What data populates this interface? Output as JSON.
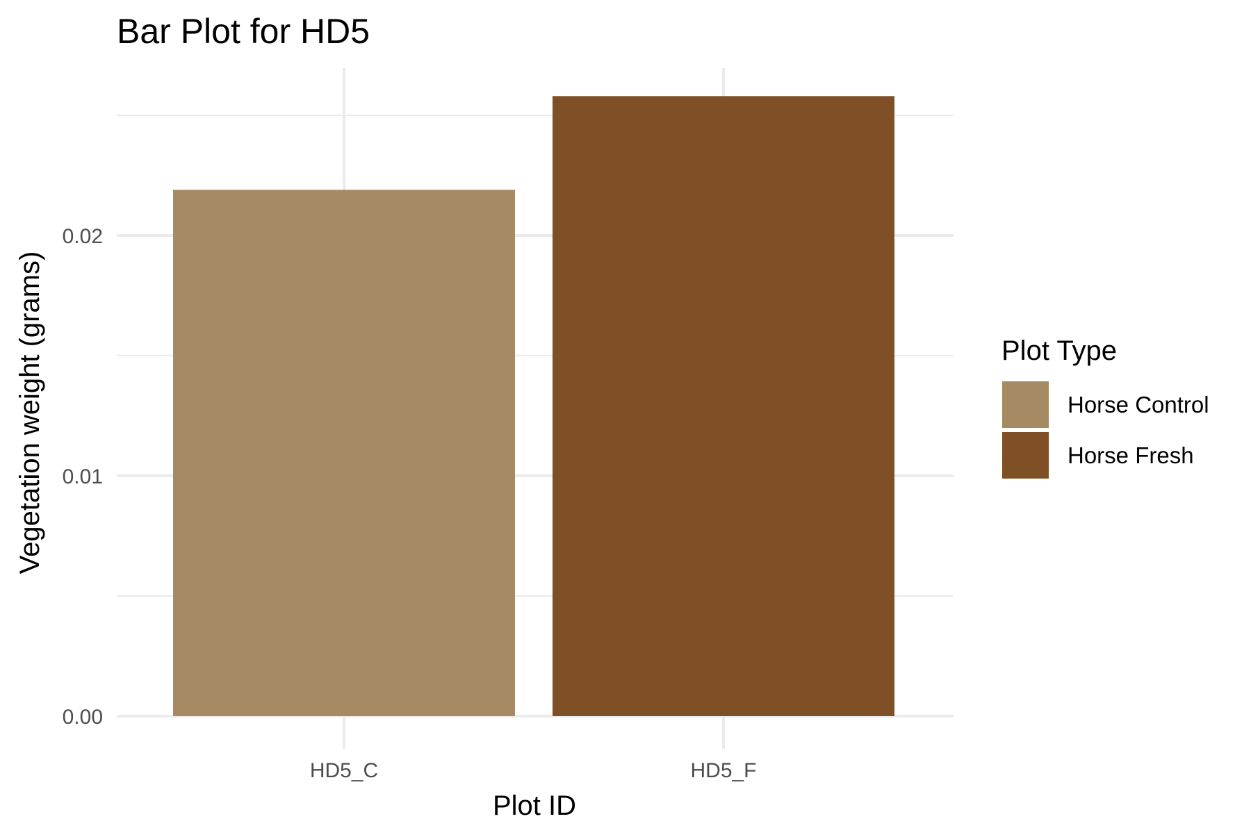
{
  "chart_data": {
    "type": "bar",
    "title": "Bar Plot for HD5",
    "xlabel": "Plot ID",
    "ylabel": "Vegetation weight (grams)",
    "categories": [
      "HD5_C",
      "HD5_F"
    ],
    "values": [
      0.0219,
      0.0258
    ],
    "bar_groups": [
      "Horse Control",
      "Horse Fresh"
    ],
    "ylim": [
      0,
      0.026
    ],
    "yticks": [
      0.0,
      0.01,
      0.02
    ],
    "ytick_labels": [
      "0.00",
      "0.01",
      "0.02"
    ],
    "grid": true,
    "legend": {
      "title": "Plot Type",
      "position": "right",
      "items": [
        {
          "label": "Horse Control",
          "color": "#a68a64"
        },
        {
          "label": "Horse Fresh",
          "color": "#7f5025"
        }
      ]
    }
  }
}
